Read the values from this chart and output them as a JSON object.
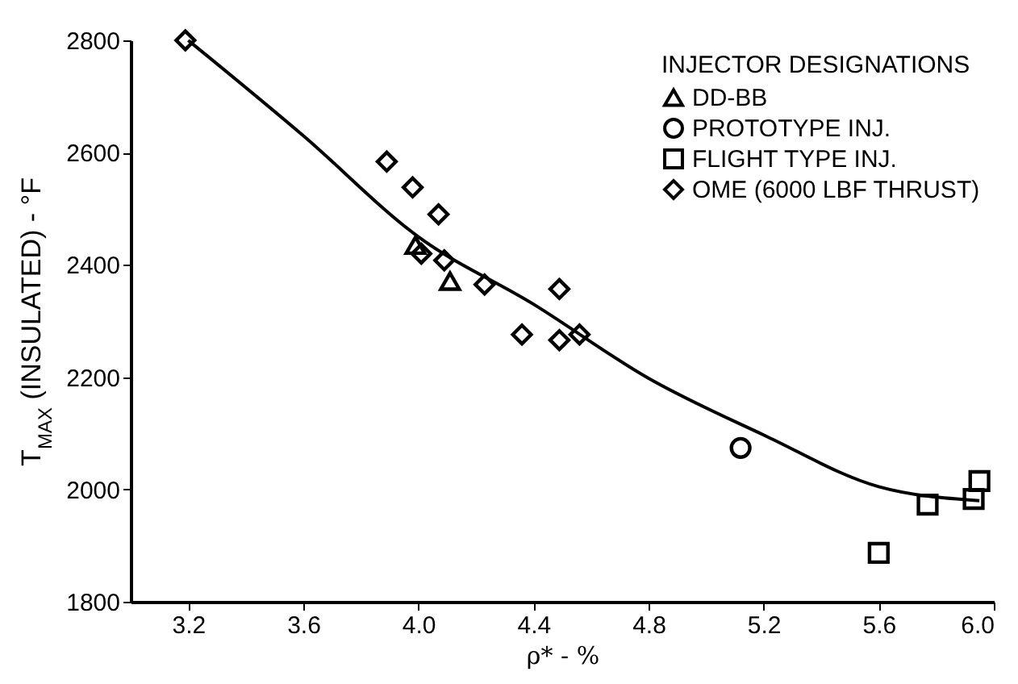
{
  "chart_data": {
    "type": "scatter",
    "xlabel": "ρ* - %",
    "ylabel": "T$_{MAX}$ (INSULATED) - °F",
    "legend_title": "INJECTOR DESIGNATIONS",
    "legend": "top right",
    "grid": false,
    "xlim": [
      3.0,
      6.0
    ],
    "xticks": [
      3.2,
      3.6,
      {
        "value": 4.0,
        "label": "4.0"
      },
      4.4,
      4.8,
      5.2,
      5.6,
      {
        "value": 6.0,
        "label": "6.0"
      }
    ],
    "ylim": [
      1800,
      2800
    ],
    "yticks": [
      1800,
      2000,
      2200,
      2400,
      2600,
      2800
    ],
    "series": [
      {
        "name": "DD-BB",
        "marker": "triangle",
        "color": "#000000",
        "x": [
          3.99,
          4.11
        ],
        "values": [
          2435,
          2371
        ]
      },
      {
        "name": "PROTOTYPE INJ.",
        "marker": "circle",
        "color": "#000000",
        "x": [
          5.12
        ],
        "values": [
          2074
        ]
      },
      {
        "name": "FLIGHT TYPE INJ.",
        "marker": "square",
        "color": "#000000",
        "x": [
          5.6,
          5.77,
          5.93,
          5.95
        ],
        "values": [
          1887,
          1973,
          1983,
          2015
        ]
      },
      {
        "name": "OME (6000 LBF THRUST)",
        "marker": "diamond",
        "color": "#000000",
        "x": [
          3.19,
          3.89,
          3.98,
          4.07,
          4.01,
          4.09,
          4.23,
          4.49,
          4.36,
          4.49,
          4.56
        ],
        "values": [
          2800,
          2584,
          2538,
          2490,
          2420,
          2408,
          2365,
          2357,
          2276,
          2266,
          2276
        ]
      },
      {
        "type": "line",
        "marker": "none",
        "line_style": "solid",
        "color": "#000000",
        "x": [
          3.2,
          3.6,
          4.0,
          4.4,
          4.8,
          5.2,
          5.6,
          5.95
        ],
        "values": [
          2800,
          2630,
          2450,
          2330,
          2198,
          2097,
          2005,
          1980
        ]
      }
    ]
  }
}
